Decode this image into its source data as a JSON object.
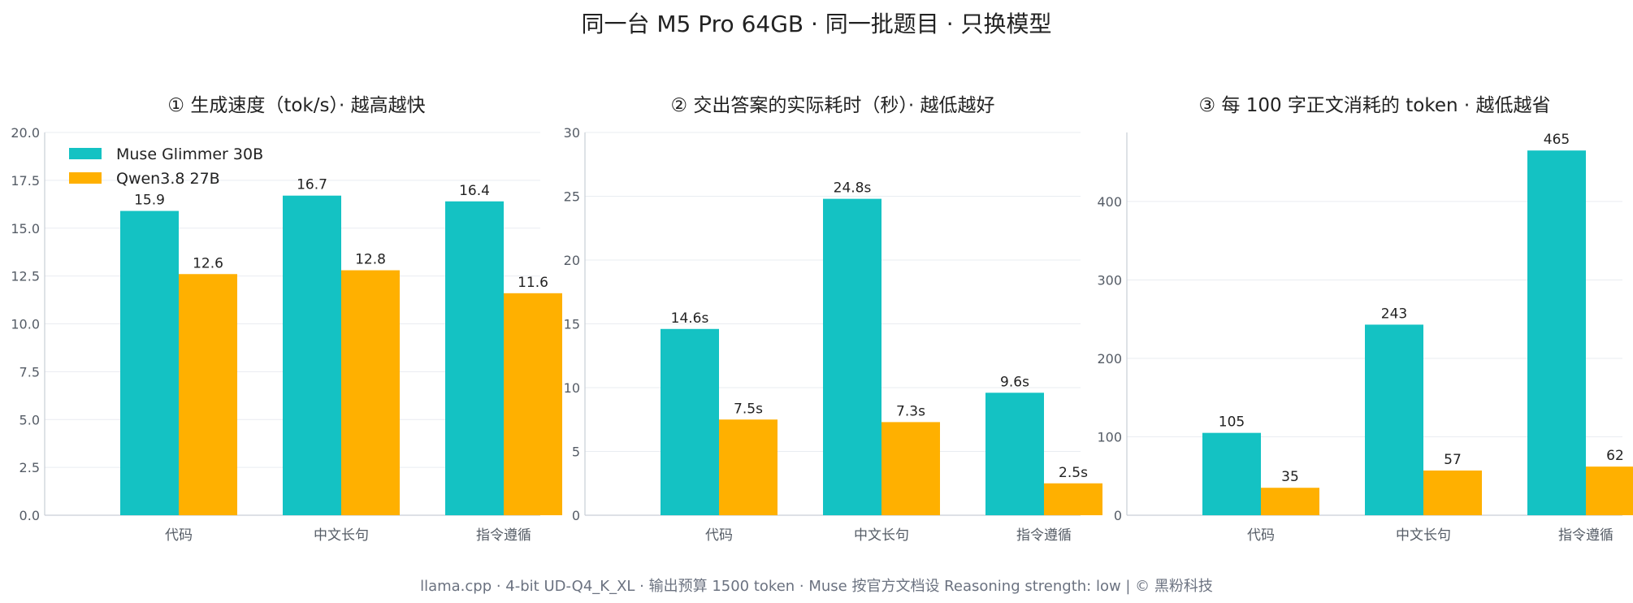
{
  "suptitle": "同一台 M5 Pro 64GB ·   同一批题目 ·   只换模型",
  "footer": "llama.cpp ·   4-bit UD-Q4_K_XL ·   输出预算 1500 token ·   Muse 按官方文档设 Reasoning strength: low    |    © 黑粉科技",
  "colors": {
    "series_a": "#14C2C3",
    "series_b": "#FFB000",
    "grid": "#e9ecf1",
    "axis": "#c9ced6",
    "tick_text": "#555c66",
    "label_text": "#222222"
  },
  "chart_data": [
    {
      "type": "bar",
      "title": "① 生成速度（tok/s）·   越高越快",
      "categories": [
        "代码",
        "中文长句",
        "指令遵循"
      ],
      "series": [
        {
          "name": "Muse Glimmer 30B",
          "values": [
            15.9,
            16.7,
            16.4
          ],
          "labels": [
            "15.9",
            "16.7",
            "16.4"
          ]
        },
        {
          "name": "Qwen3.8 27B",
          "values": [
            12.6,
            12.8,
            11.6
          ],
          "labels": [
            "12.6",
            "12.8",
            "11.6"
          ]
        }
      ],
      "ylim": [
        0,
        20
      ],
      "yticks": [
        0,
        2.5,
        5,
        7.5,
        10,
        12.5,
        15,
        17.5,
        20
      ],
      "ytick_labels": [
        "0.0",
        "2.5",
        "5.0",
        "7.5",
        "10.0",
        "12.5",
        "15.0",
        "17.5",
        "20.0"
      ],
      "legend": "top-left",
      "grid": true
    },
    {
      "type": "bar",
      "title": "② 交出答案的实际耗时（秒）·   越低越好",
      "categories": [
        "代码",
        "中文长句",
        "指令遵循"
      ],
      "series": [
        {
          "values": [
            14.6,
            24.8,
            9.6
          ],
          "labels": [
            "14.6s",
            "24.8s",
            "9.6s"
          ]
        },
        {
          "values": [
            7.5,
            7.3,
            2.5
          ],
          "labels": [
            "7.5s",
            "7.3s",
            "2.5s"
          ]
        }
      ],
      "ylim": [
        0,
        30
      ],
      "yticks": [
        0,
        5,
        10,
        15,
        20,
        25,
        30
      ],
      "ytick_labels": [
        "0",
        "5",
        "10",
        "15",
        "20",
        "25",
        "30"
      ],
      "grid": true
    },
    {
      "type": "bar",
      "title": "③ 每 100 字正文消耗的 token ·   越低越省",
      "categories": [
        "代码",
        "中文长句",
        "指令遵循"
      ],
      "series": [
        {
          "values": [
            105,
            243,
            465
          ],
          "labels": [
            "105",
            "243",
            "465"
          ]
        },
        {
          "values": [
            35,
            57,
            62
          ],
          "labels": [
            "35",
            "57",
            "62"
          ]
        }
      ],
      "ylim": [
        0,
        488
      ],
      "yticks": [
        0,
        100,
        200,
        300,
        400
      ],
      "ytick_labels": [
        "0",
        "100",
        "200",
        "300",
        "400"
      ],
      "grid": true
    }
  ]
}
